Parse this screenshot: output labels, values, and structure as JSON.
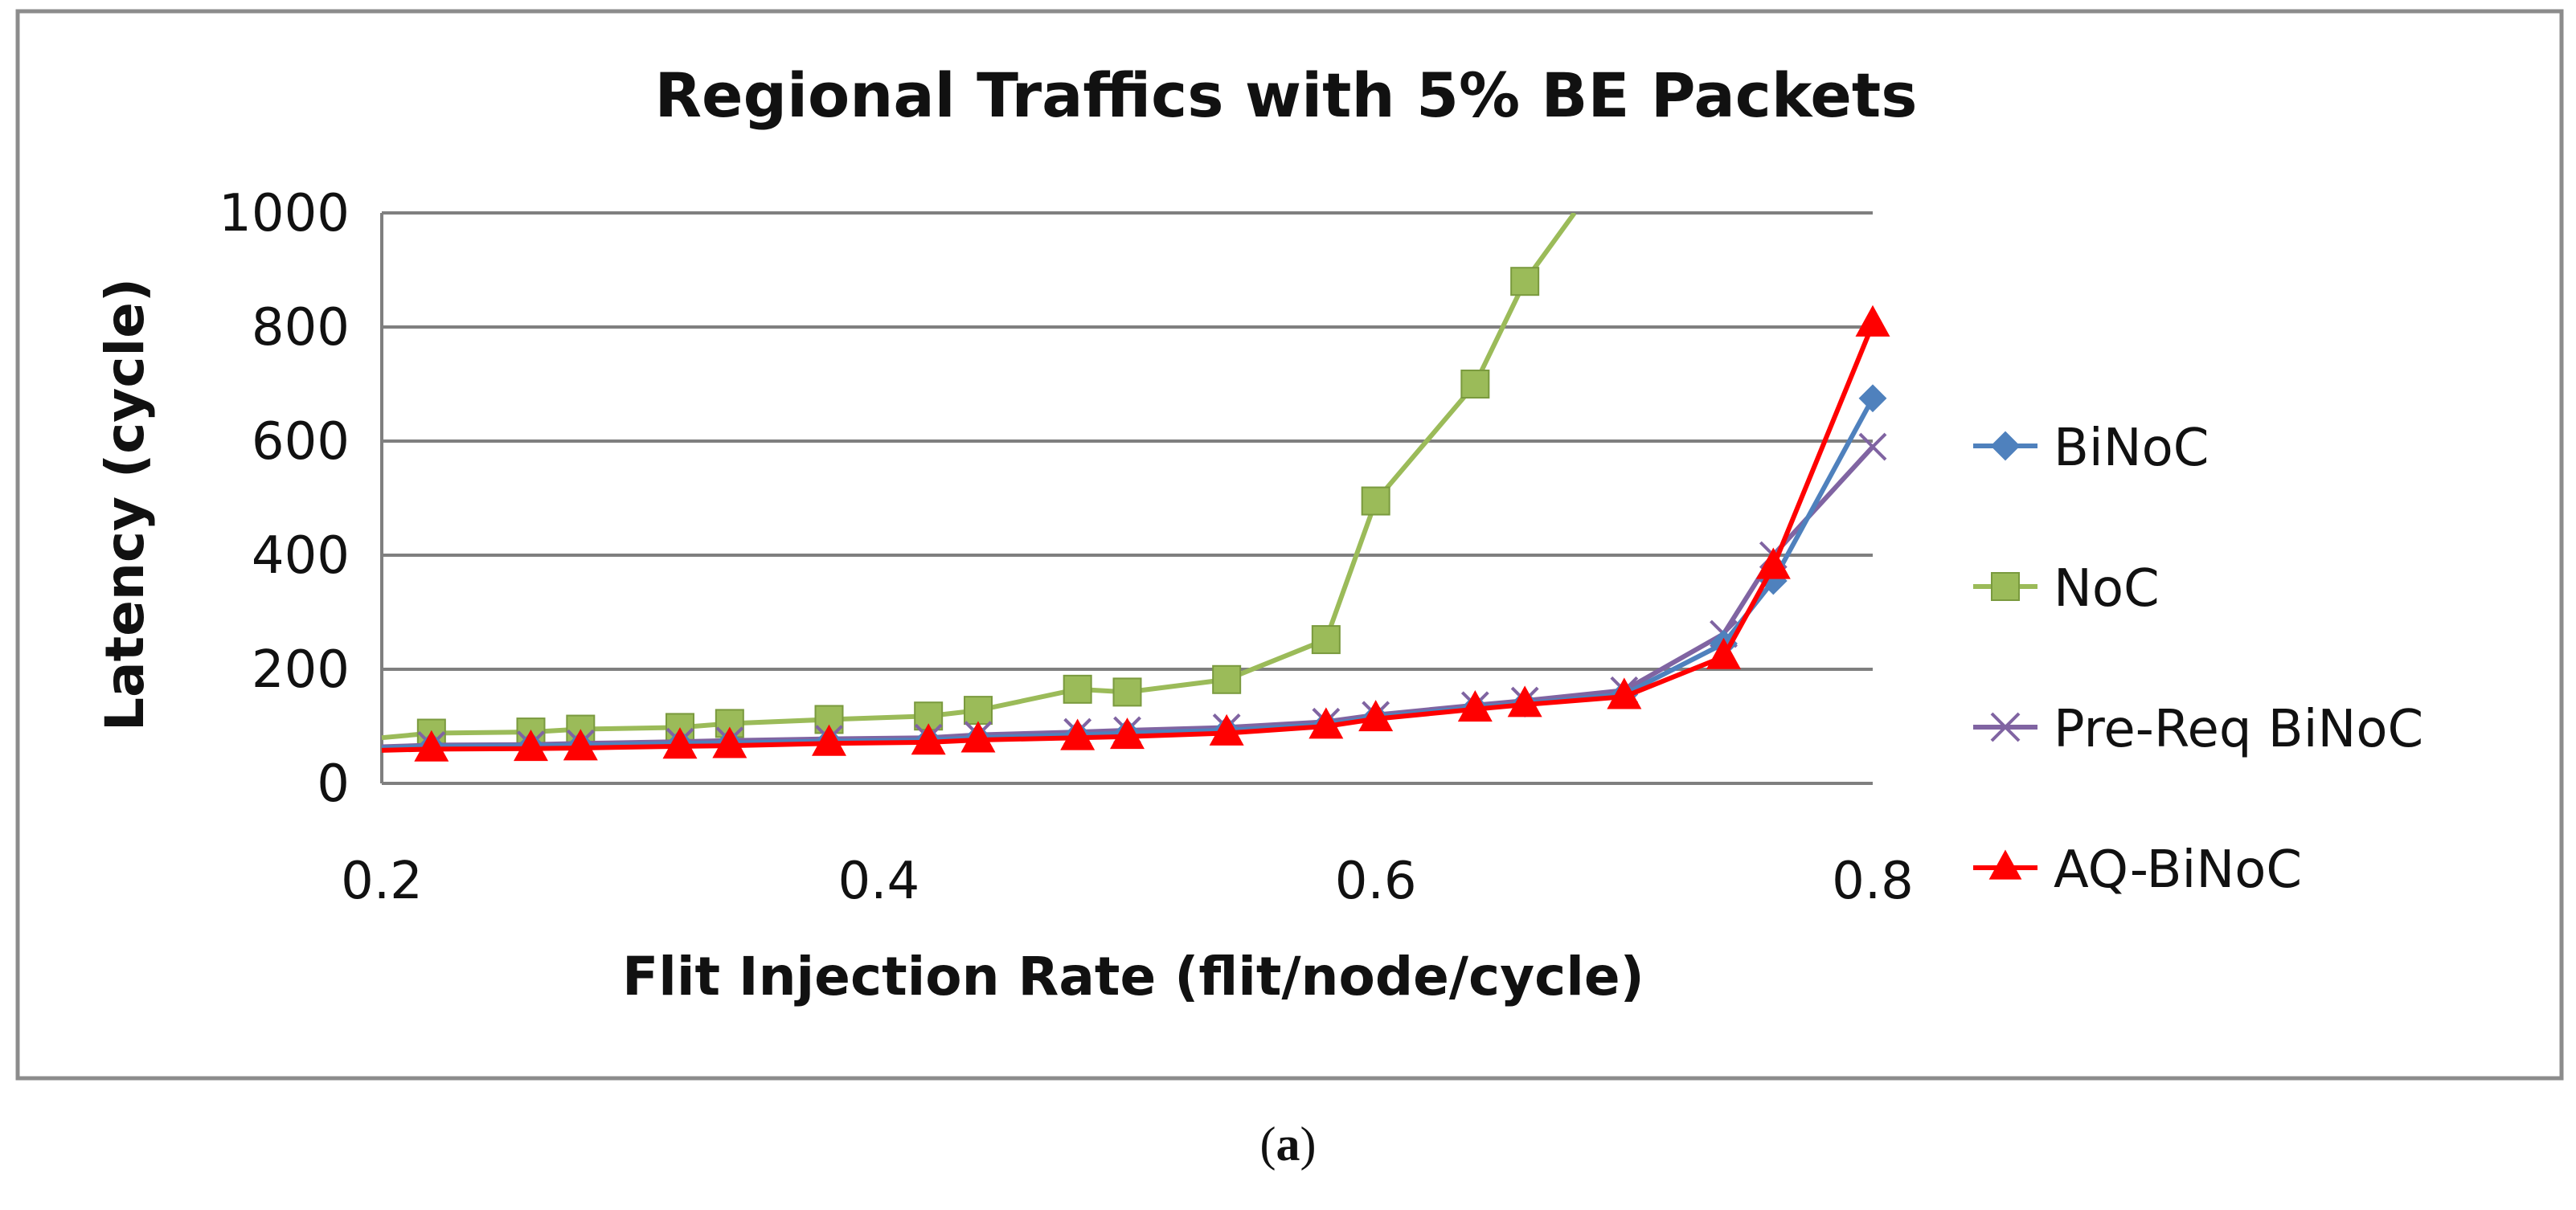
{
  "chart_data": {
    "type": "line",
    "title": "Regional Traffics with 5% BE Packets",
    "xlabel": "Flit Injection Rate (flit/node/cycle)",
    "ylabel": "Latency (cycle)",
    "xlim": [
      0.2,
      0.8
    ],
    "ylim": [
      0,
      1000
    ],
    "xticks": [
      0.2,
      0.4,
      0.6,
      0.8
    ],
    "xtick_labels": [
      "0.2",
      "0.4",
      "0.6",
      "0.8"
    ],
    "yticks": [
      0,
      200,
      400,
      600,
      800,
      1000
    ],
    "ytick_labels": [
      "0",
      "200",
      "400",
      "600",
      "800",
      "1000"
    ],
    "grid": true,
    "legend_position": "right",
    "series": [
      {
        "name": "BiNoC",
        "color": "#4f81bd",
        "marker": "diamond",
        "x": [
          0.2,
          0.22,
          0.26,
          0.28,
          0.32,
          0.34,
          0.38,
          0.42,
          0.44,
          0.48,
          0.5,
          0.54,
          0.58,
          0.6,
          0.64,
          0.66,
          0.7,
          0.74,
          0.76,
          0.8
        ],
        "y": [
          62,
          65,
          66,
          67,
          70,
          71,
          74,
          76,
          80,
          85,
          88,
          93,
          103,
          116,
          133,
          140,
          156,
          245,
          355,
          675
        ]
      },
      {
        "name": "NoC",
        "color": "#9bbb59",
        "marker": "square",
        "x": [
          0.2,
          0.22,
          0.26,
          0.28,
          0.32,
          0.34,
          0.38,
          0.42,
          0.44,
          0.48,
          0.5,
          0.54,
          0.58,
          0.6,
          0.64,
          0.66,
          0.68
        ],
        "y": [
          80,
          88,
          90,
          95,
          98,
          105,
          112,
          118,
          128,
          165,
          160,
          182,
          252,
          495,
          700,
          880,
          1000
        ]
      },
      {
        "name": "Pre-Req BiNoC",
        "color": "#8064a2",
        "marker": "x",
        "x": [
          0.2,
          0.22,
          0.26,
          0.28,
          0.32,
          0.34,
          0.38,
          0.42,
          0.44,
          0.48,
          0.5,
          0.54,
          0.58,
          0.6,
          0.64,
          0.66,
          0.7,
          0.74,
          0.76,
          0.8
        ],
        "y": [
          64,
          67,
          68,
          70,
          73,
          75,
          78,
          80,
          85,
          90,
          93,
          98,
          108,
          120,
          137,
          145,
          163,
          262,
          400,
          590
        ]
      },
      {
        "name": "AQ-BiNoC",
        "color": "#ff0000",
        "marker": "triangle",
        "x": [
          0.2,
          0.22,
          0.26,
          0.28,
          0.32,
          0.34,
          0.38,
          0.42,
          0.44,
          0.48,
          0.5,
          0.54,
          0.58,
          0.6,
          0.64,
          0.66,
          0.7,
          0.74,
          0.76,
          0.8
        ],
        "y": [
          58,
          60,
          61,
          62,
          65,
          66,
          70,
          72,
          76,
          80,
          82,
          88,
          100,
          113,
          130,
          138,
          152,
          222,
          380,
          805
        ]
      }
    ]
  },
  "caption": {
    "open": "(",
    "letter": "a",
    "close": ")"
  }
}
